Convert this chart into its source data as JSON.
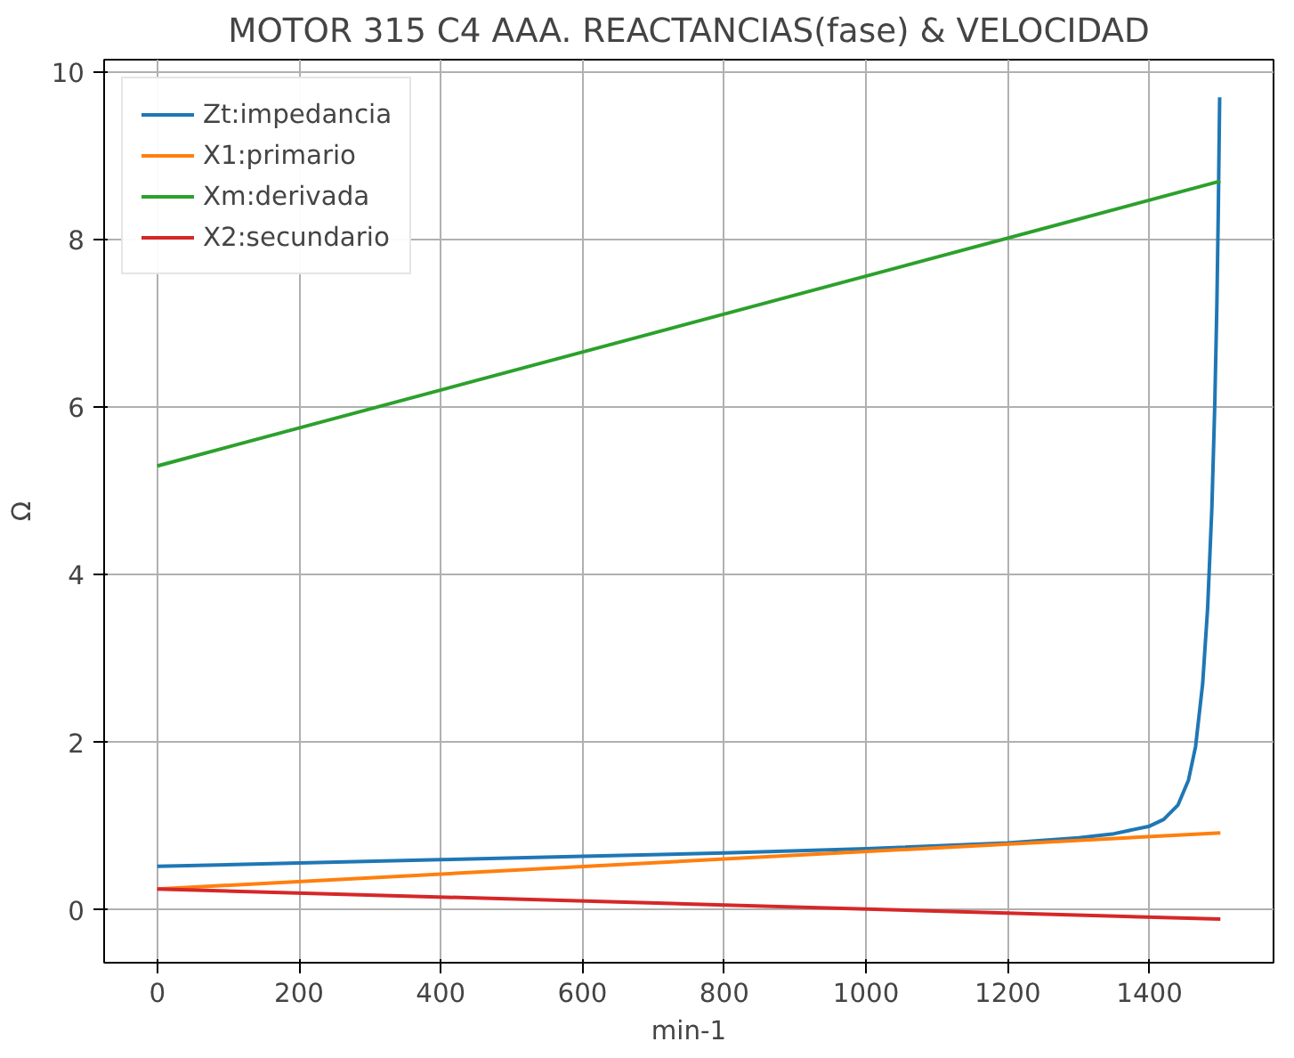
{
  "chart_data": {
    "type": "line",
    "title": "MOTOR 315 C4 AAA. REACTANCIAS(fase) & VELOCIDAD",
    "xlabel": "min-1",
    "ylabel": "Ω",
    "xlim": [
      -75,
      1575
    ],
    "ylim": [
      -0.63,
      10.15
    ],
    "xticks": [
      0,
      200,
      400,
      600,
      800,
      1000,
      1200,
      1400
    ],
    "yticks": [
      0,
      2,
      4,
      6,
      8,
      10
    ],
    "grid": true,
    "legend": "top left",
    "marker": "none",
    "line_style": "solid",
    "series": [
      {
        "name": "Zt:impedancia",
        "color": "#1f77b4",
        "x": [
          0,
          200,
          400,
          600,
          800,
          1000,
          1200,
          1300,
          1350,
          1400,
          1420,
          1440,
          1455,
          1465,
          1475,
          1482,
          1488,
          1492,
          1495,
          1497,
          1499
        ],
        "values": [
          0.52,
          0.56,
          0.6,
          0.64,
          0.68,
          0.73,
          0.8,
          0.86,
          0.91,
          1.0,
          1.08,
          1.25,
          1.55,
          1.95,
          2.7,
          3.6,
          4.8,
          6.0,
          7.2,
          8.3,
          9.7
        ]
      },
      {
        "name": "X1:primario",
        "color": "#ff7f0e",
        "x": [
          0,
          1500
        ],
        "values": [
          0.25,
          0.92
        ]
      },
      {
        "name": "Xm:derivada",
        "color": "#2ca02c",
        "x": [
          0,
          1500
        ],
        "values": [
          5.3,
          8.7
        ]
      },
      {
        "name": "X2:secundario",
        "color": "#d62728",
        "x": [
          0,
          1500
        ],
        "values": [
          0.25,
          -0.11
        ]
      }
    ]
  }
}
